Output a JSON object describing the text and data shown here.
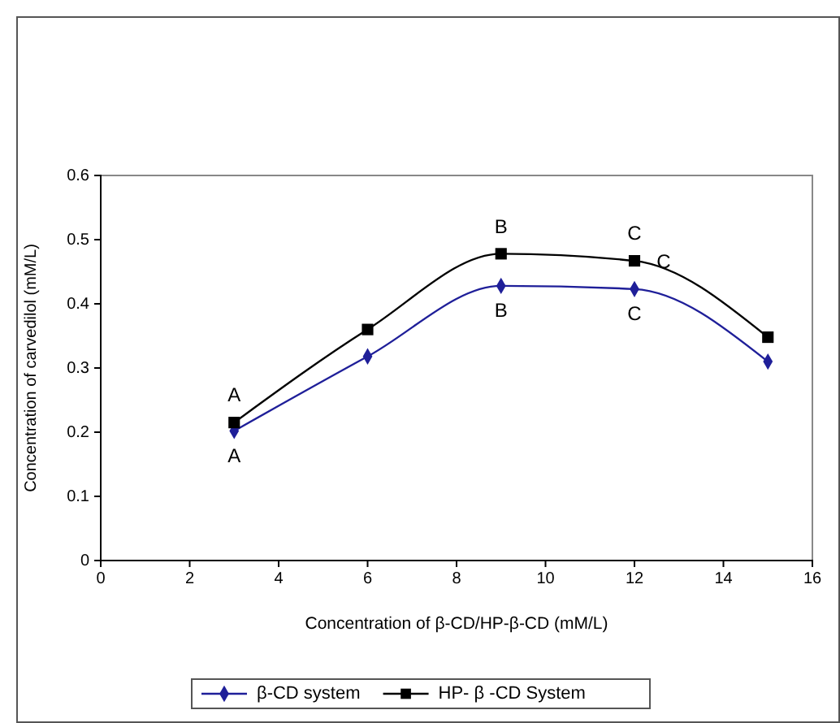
{
  "chart_data": {
    "type": "line",
    "xlabel": "Concentration of β-CD/HP-β-CD (mM/L)",
    "ylabel": "Concentration of carvedilol (mM/L)",
    "x": [
      3,
      6,
      9,
      12,
      15
    ],
    "series": [
      {
        "name": "β-CD system",
        "color": "#1f1f99",
        "marker": "diamond",
        "values": [
          0.202,
          0.318,
          0.428,
          0.423,
          0.31
        ]
      },
      {
        "name": "HP- β -CD System",
        "color": "#000000",
        "marker": "square",
        "values": [
          0.215,
          0.36,
          0.478,
          0.467,
          0.348
        ]
      }
    ],
    "xlim": [
      0,
      16
    ],
    "xticks": [
      0,
      2,
      4,
      6,
      8,
      10,
      12,
      14,
      16
    ],
    "ylim": [
      0,
      0.6
    ],
    "yticks": [
      0,
      0.1,
      0.2,
      0.3,
      0.4,
      0.5,
      0.6
    ],
    "annotations": [
      {
        "text": "A",
        "x": 3,
        "y": 0.215
      },
      {
        "text": "A",
        "x": 3,
        "y": 0.202
      },
      {
        "text": "B",
        "x": 9,
        "y": 0.478
      },
      {
        "text": "B",
        "x": 9,
        "y": 0.428
      },
      {
        "text": "C",
        "x": 12,
        "y": 0.467
      },
      {
        "text": "C",
        "x": 12,
        "y": 0.423
      },
      {
        "text": "C",
        "x": 12,
        "y": 0.423
      }
    ],
    "legend": "bottom",
    "grid": false
  }
}
